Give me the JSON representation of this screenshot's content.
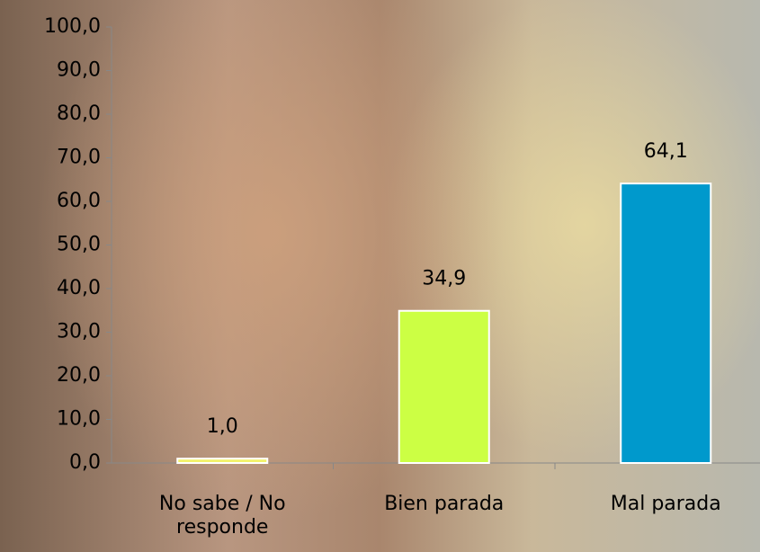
{
  "chart_data": {
    "type": "bar",
    "categories": [
      "No sabe / No responde",
      "Bien parada",
      "Mal parada"
    ],
    "values": [
      1.0,
      34.9,
      64.1
    ],
    "value_labels": [
      "1,0",
      "34,9",
      "64,1"
    ],
    "colors": [
      "#f2f26a",
      "#ccff44",
      "#0099cc"
    ],
    "ylim": [
      0,
      100
    ],
    "yticks": [
      {
        "value": 0,
        "label": "0,0"
      },
      {
        "value": 10,
        "label": "10,0"
      },
      {
        "value": 20,
        "label": "20,0"
      },
      {
        "value": 30,
        "label": "30,0"
      },
      {
        "value": 40,
        "label": "40,0"
      },
      {
        "value": 50,
        "label": "50,0"
      },
      {
        "value": 60,
        "label": "60,0"
      },
      {
        "value": 70,
        "label": "70,0"
      },
      {
        "value": 80,
        "label": "80,0"
      },
      {
        "value": 90,
        "label": "90,0"
      },
      {
        "value": 100,
        "label": "100,0"
      }
    ],
    "grid": false
  }
}
